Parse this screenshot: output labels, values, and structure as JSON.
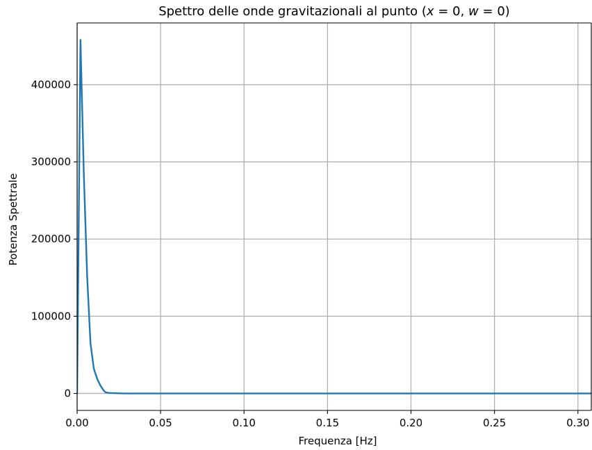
{
  "chart_data": {
    "type": "line",
    "title": "Spettro delle onde gravitazionali al punto (x = 0, w = 0)",
    "xlabel": "Frequenza [Hz]",
    "ylabel": "Potenza Spettrale",
    "xlim": [
      0,
      0.308
    ],
    "ylim": [
      -22000,
      480000
    ],
    "xticks": [
      0.0,
      0.05,
      0.1,
      0.15,
      0.2,
      0.25,
      0.3
    ],
    "xtick_labels": [
      "0.00",
      "0.05",
      "0.10",
      "0.15",
      "0.20",
      "0.25",
      "0.30"
    ],
    "yticks": [
      0,
      100000,
      200000,
      300000,
      400000
    ],
    "ytick_labels": [
      "0",
      "100000",
      "200000",
      "300000",
      "400000"
    ],
    "grid": true,
    "series": [
      {
        "color": "#1f77b4",
        "x": [
          0.0,
          0.002,
          0.004,
          0.006,
          0.008,
          0.01,
          0.012,
          0.014,
          0.016,
          0.017,
          0.019,
          0.023,
          0.028,
          0.05,
          0.1,
          0.15,
          0.2,
          0.25,
          0.308
        ],
        "y": [
          0,
          458000,
          285000,
          152000,
          65000,
          32000,
          19000,
          10000,
          3500,
          1500,
          700,
          300,
          0,
          0,
          0,
          0,
          0,
          0,
          0
        ]
      }
    ]
  }
}
